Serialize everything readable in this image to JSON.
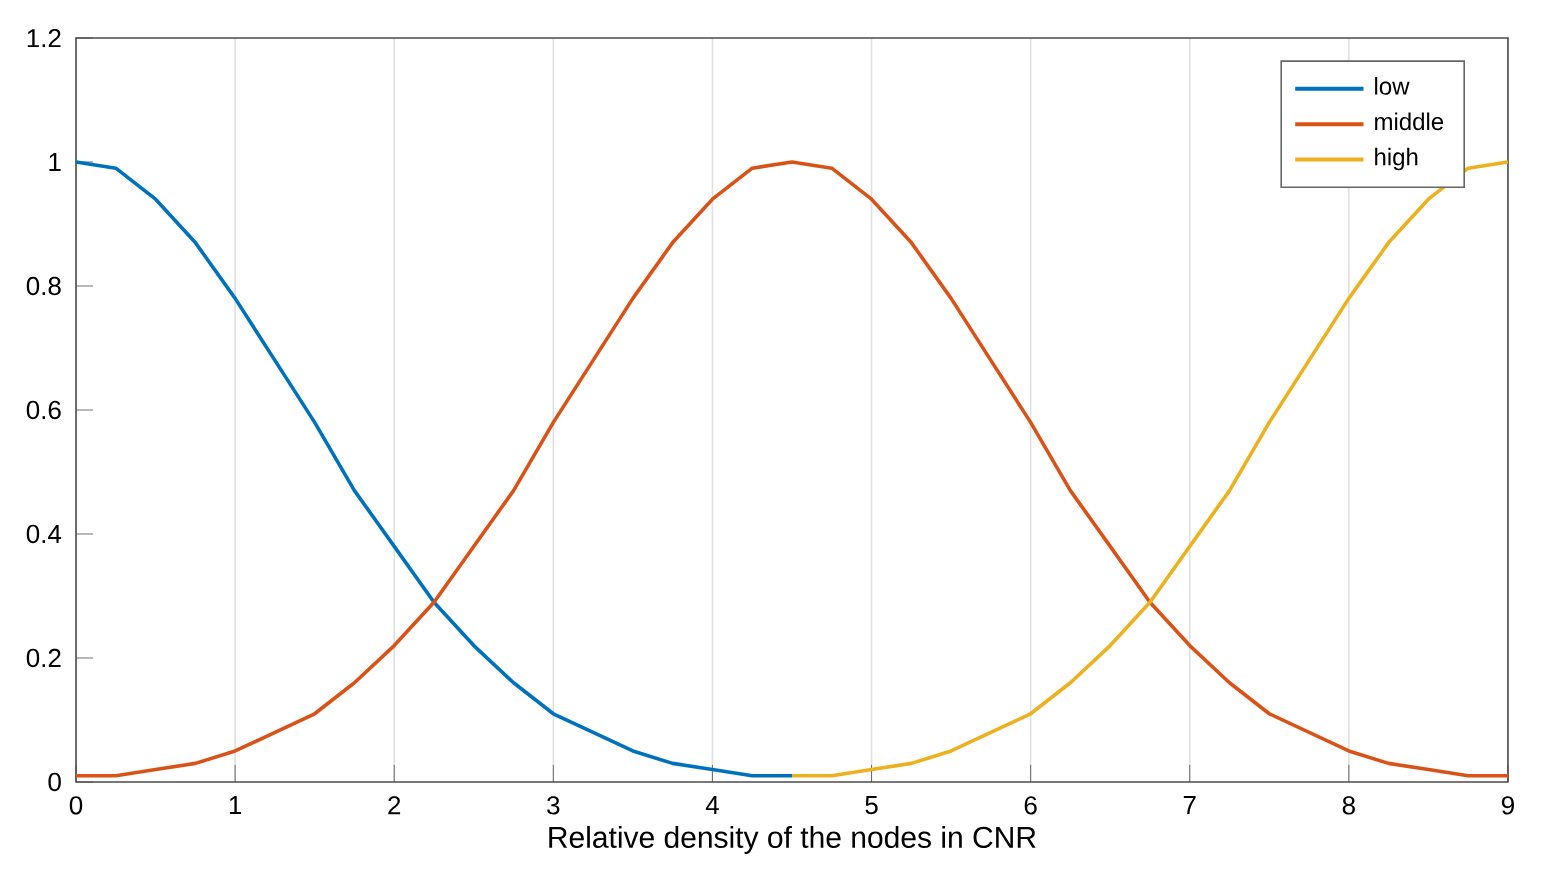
{
  "chart_data": {
    "type": "line",
    "xlabel": "Relative density of the nodes in CNR",
    "xlim": [
      0,
      9
    ],
    "ylim": [
      0,
      1.2
    ],
    "xticks": [
      0,
      1,
      2,
      3,
      4,
      5,
      6,
      7,
      8,
      9
    ],
    "yticks": [
      0,
      0.2,
      0.4,
      0.6,
      0.8,
      1,
      1.2
    ],
    "grid": "x",
    "legend": "top right",
    "marker": "none",
    "line_style": "solid",
    "series": [
      {
        "name": "low",
        "color": "#0072bd",
        "x": [
          0,
          0.25,
          0.5,
          0.75,
          1,
          1.25,
          1.5,
          1.75,
          2,
          2.25,
          2.5,
          2.75,
          3,
          3.25,
          3.5,
          3.75,
          4,
          4.25,
          4.5
        ],
        "values": [
          1,
          0.99,
          0.94,
          0.87,
          0.78,
          0.68,
          0.58,
          0.47,
          0.38,
          0.29,
          0.22,
          0.16,
          0.11,
          0.08,
          0.05,
          0.03,
          0.02,
          0.01,
          0.01
        ]
      },
      {
        "name": "middle",
        "color": "#d95319",
        "x": [
          0,
          0.25,
          0.5,
          0.75,
          1,
          1.25,
          1.5,
          1.75,
          2,
          2.25,
          2.5,
          2.75,
          3,
          3.25,
          3.5,
          3.75,
          4,
          4.25,
          4.5,
          4.75,
          5,
          5.25,
          5.5,
          5.75,
          6,
          6.25,
          6.5,
          6.75,
          7,
          7.25,
          7.5,
          7.75,
          8,
          8.25,
          8.5,
          8.75,
          9
        ],
        "values": [
          0.01,
          0.01,
          0.02,
          0.03,
          0.05,
          0.08,
          0.11,
          0.16,
          0.22,
          0.29,
          0.38,
          0.47,
          0.58,
          0.68,
          0.78,
          0.87,
          0.94,
          0.99,
          1,
          0.99,
          0.94,
          0.87,
          0.78,
          0.68,
          0.58,
          0.47,
          0.38,
          0.29,
          0.22,
          0.16,
          0.11,
          0.08,
          0.05,
          0.03,
          0.02,
          0.01,
          0.01
        ]
      },
      {
        "name": "high",
        "color": "#edb120",
        "x": [
          4.5,
          4.75,
          5,
          5.25,
          5.5,
          5.75,
          6,
          6.25,
          6.5,
          6.75,
          7,
          7.25,
          7.5,
          7.75,
          8,
          8.25,
          8.5,
          8.75,
          9
        ],
        "values": [
          0.01,
          0.01,
          0.02,
          0.03,
          0.05,
          0.08,
          0.11,
          0.16,
          0.22,
          0.29,
          0.38,
          0.47,
          0.58,
          0.68,
          0.78,
          0.87,
          0.94,
          0.99,
          1
        ]
      }
    ]
  }
}
